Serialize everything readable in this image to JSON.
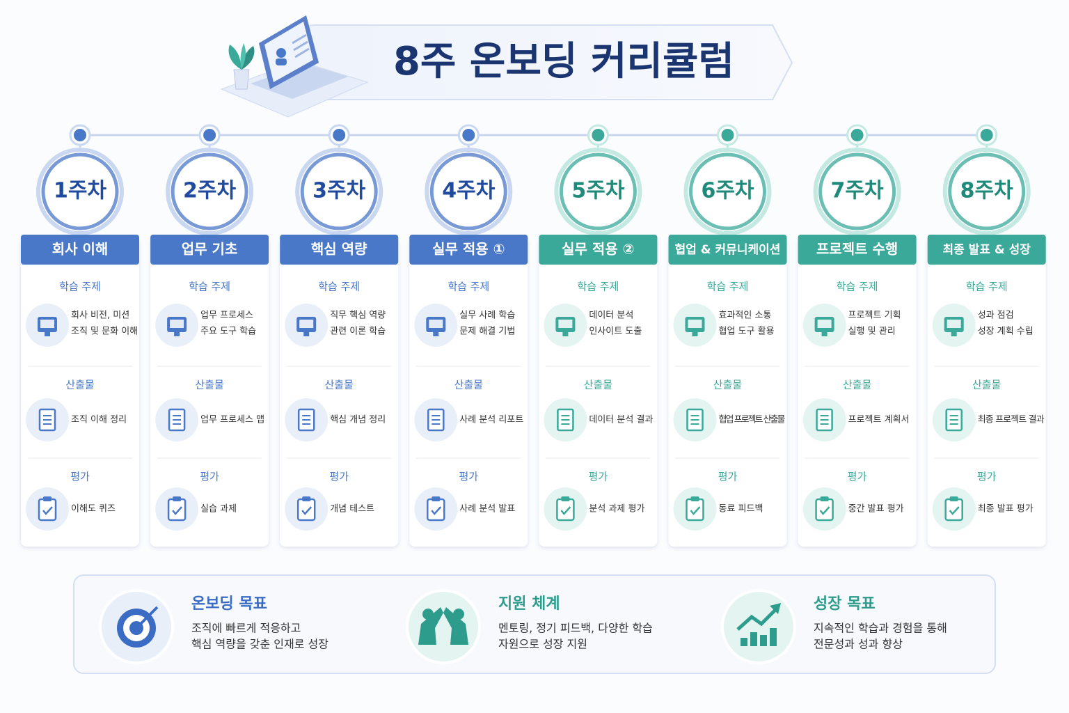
{
  "title": "8주 온보딩 커리큘럼",
  "weeks": [
    {
      "week": "1주차",
      "theme": "회사 이해",
      "topic_label": "학습 주제",
      "topic": [
        "회사 비전, 미션",
        "조직 및 문화 이해"
      ],
      "output_label": "산출물",
      "output": "조직 이해 정리",
      "eval_label": "평가",
      "eval": "이해도 퀴즈"
    },
    {
      "week": "2주차",
      "theme": "업무 기초",
      "topic_label": "학습 주제",
      "topic": [
        "업무 프로세스",
        "주요 도구 학습"
      ],
      "output_label": "산출물",
      "output": "업무 프로세스 맵",
      "eval_label": "평가",
      "eval": "실습 과제"
    },
    {
      "week": "3주차",
      "theme": "핵심 역량",
      "topic_label": "학습 주제",
      "topic": [
        "직무 핵심 역량",
        "관련 이론 학습"
      ],
      "output_label": "산출물",
      "output": "핵심 개념 정리",
      "eval_label": "평가",
      "eval": "개념 테스트"
    },
    {
      "week": "4주차",
      "theme": "실무 적용 ①",
      "topic_label": "학습 주제",
      "topic": [
        "실무 사례 학습",
        "문제 해결 기법"
      ],
      "output_label": "산출물",
      "output": "사례 분석 리포트",
      "eval_label": "평가",
      "eval": "사례 분석 발표"
    },
    {
      "week": "5주차",
      "theme": "실무 적용 ②",
      "topic_label": "학습 주제",
      "topic": [
        "데이터 분석",
        "인사이트 도출"
      ],
      "output_label": "산출물",
      "output": "데이터 분석 결과",
      "eval_label": "평가",
      "eval": "분석 과제 평가"
    },
    {
      "week": "6주차",
      "theme": "협업 & 커뮤니케이션",
      "topic_label": "학습 주제",
      "topic": [
        "효과적인 소통",
        "협업 도구 활용"
      ],
      "output_label": "산출물",
      "output": "협업 프로젝트 산출물",
      "eval_label": "평가",
      "eval": "동료 피드백"
    },
    {
      "week": "7주차",
      "theme": "프로젝트 수행",
      "topic_label": "학습 주제",
      "topic": [
        "프로젝트 기획",
        "실행 및 관리"
      ],
      "output_label": "산출물",
      "output": "프로젝트 계획서",
      "eval_label": "평가",
      "eval": "중간 발표 평가"
    },
    {
      "week": "8주차",
      "theme": "최종 발표 & 성장",
      "topic_label": "학습 주제",
      "topic": [
        "성과 점검",
        "성장 계획 수립"
      ],
      "output_label": "산출물",
      "output": "최종 프로젝트 결과",
      "eval_label": "평가",
      "eval": "최종 발표 평가"
    }
  ],
  "footer": [
    {
      "title": "온보딩 목표",
      "lines": [
        "조직에 빠르게 적응하고",
        "핵심 역량을 갖춘 인재로 성장"
      ]
    },
    {
      "title": "지원 체계",
      "lines": [
        "멘토링, 정기 피드백, 다양한 학습",
        "자원으로 성장 지원"
      ]
    },
    {
      "title": "성장 목표",
      "lines": [
        "지속적인 학습과 경험을 통해",
        "전문성과 성과 향상"
      ]
    }
  ]
}
